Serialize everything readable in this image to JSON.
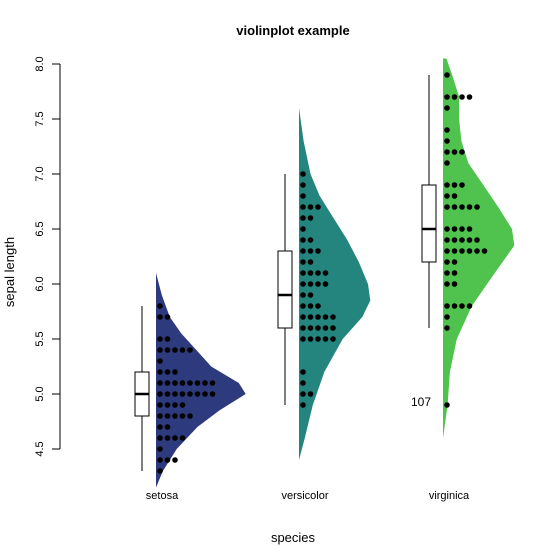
{
  "chart_data": {
    "type": "violin",
    "title": "violinplot example",
    "xlabel": "species",
    "ylabel": "sepal length",
    "ylim": [
      4.3,
      8.05
    ],
    "yticks": [
      "4.5",
      "5.0",
      "5.5",
      "6.0",
      "6.5",
      "7.0",
      "7.5",
      "8.0"
    ],
    "categories": [
      "setosa",
      "versicolor",
      "virginica"
    ],
    "grid": false,
    "series": [
      {
        "category": "setosa",
        "color": "#2e3a7e",
        "box": {
          "min": 4.3,
          "q1": 4.8,
          "median": 5.0,
          "q3": 5.2,
          "max": 5.8
        },
        "density": [
          [
            4.15,
            0.0
          ],
          [
            4.3,
            0.06
          ],
          [
            4.5,
            0.18
          ],
          [
            4.7,
            0.36
          ],
          [
            4.85,
            0.55
          ],
          [
            5.0,
            0.78
          ],
          [
            5.1,
            0.72
          ],
          [
            5.25,
            0.48
          ],
          [
            5.4,
            0.35
          ],
          [
            5.55,
            0.22
          ],
          [
            5.7,
            0.12
          ],
          [
            5.9,
            0.05
          ],
          [
            6.1,
            0.0
          ]
        ],
        "points": [
          4.3,
          4.4,
          4.4,
          4.4,
          4.5,
          4.6,
          4.6,
          4.6,
          4.6,
          4.7,
          4.7,
          4.8,
          4.8,
          4.8,
          4.8,
          4.8,
          4.9,
          4.9,
          4.9,
          4.9,
          5.0,
          5.0,
          5.0,
          5.0,
          5.0,
          5.0,
          5.0,
          5.0,
          5.1,
          5.1,
          5.1,
          5.1,
          5.1,
          5.1,
          5.1,
          5.1,
          5.2,
          5.2,
          5.2,
          5.3,
          5.4,
          5.4,
          5.4,
          5.4,
          5.4,
          5.5,
          5.5,
          5.7,
          5.7,
          5.8
        ]
      },
      {
        "category": "versicolor",
        "color": "#23857e",
        "box": {
          "min": 4.9,
          "q1": 5.6,
          "median": 5.9,
          "q3": 6.3,
          "max": 7.0
        },
        "density": [
          [
            4.4,
            0.0
          ],
          [
            4.6,
            0.05
          ],
          [
            4.9,
            0.12
          ],
          [
            5.2,
            0.22
          ],
          [
            5.5,
            0.38
          ],
          [
            5.7,
            0.55
          ],
          [
            5.85,
            0.62
          ],
          [
            6.0,
            0.6
          ],
          [
            6.2,
            0.52
          ],
          [
            6.4,
            0.42
          ],
          [
            6.6,
            0.3
          ],
          [
            6.8,
            0.18
          ],
          [
            7.0,
            0.1
          ],
          [
            7.3,
            0.04
          ],
          [
            7.6,
            0.0
          ]
        ],
        "points": [
          4.9,
          5.0,
          5.0,
          5.1,
          5.2,
          5.5,
          5.5,
          5.5,
          5.5,
          5.5,
          5.6,
          5.6,
          5.6,
          5.6,
          5.6,
          5.7,
          5.7,
          5.7,
          5.7,
          5.7,
          5.8,
          5.8,
          5.8,
          5.9,
          5.9,
          6.0,
          6.0,
          6.0,
          6.0,
          6.1,
          6.1,
          6.1,
          6.1,
          6.2,
          6.2,
          6.3,
          6.3,
          6.3,
          6.4,
          6.4,
          6.5,
          6.6,
          6.6,
          6.7,
          6.7,
          6.7,
          6.8,
          6.9,
          7.0
        ]
      },
      {
        "category": "virginica",
        "color": "#50c24e",
        "box": {
          "min": 5.6,
          "q1": 6.2,
          "median": 6.5,
          "q3": 6.9,
          "max": 7.9
        },
        "density": [
          [
            4.6,
            0.0
          ],
          [
            4.9,
            0.04
          ],
          [
            5.2,
            0.06
          ],
          [
            5.5,
            0.12
          ],
          [
            5.8,
            0.25
          ],
          [
            6.1,
            0.45
          ],
          [
            6.35,
            0.62
          ],
          [
            6.5,
            0.6
          ],
          [
            6.7,
            0.48
          ],
          [
            6.9,
            0.35
          ],
          [
            7.1,
            0.22
          ],
          [
            7.3,
            0.16
          ],
          [
            7.5,
            0.14
          ],
          [
            7.7,
            0.14
          ],
          [
            7.9,
            0.08
          ],
          [
            8.05,
            0.03
          ]
        ],
        "points": [
          4.9,
          5.6,
          5.7,
          5.8,
          5.8,
          5.8,
          5.8,
          6.0,
          6.0,
          6.1,
          6.1,
          6.2,
          6.2,
          6.3,
          6.3,
          6.3,
          6.3,
          6.3,
          6.3,
          6.4,
          6.4,
          6.4,
          6.4,
          6.4,
          6.5,
          6.5,
          6.5,
          6.5,
          6.7,
          6.7,
          6.7,
          6.7,
          6.7,
          6.8,
          6.8,
          6.9,
          6.9,
          6.9,
          7.1,
          7.2,
          7.2,
          7.2,
          7.3,
          7.4,
          7.6,
          7.7,
          7.7,
          7.7,
          7.7,
          7.9
        ]
      }
    ],
    "annotations": [
      {
        "text": "107",
        "category": "virginica",
        "y": 4.92
      }
    ]
  }
}
